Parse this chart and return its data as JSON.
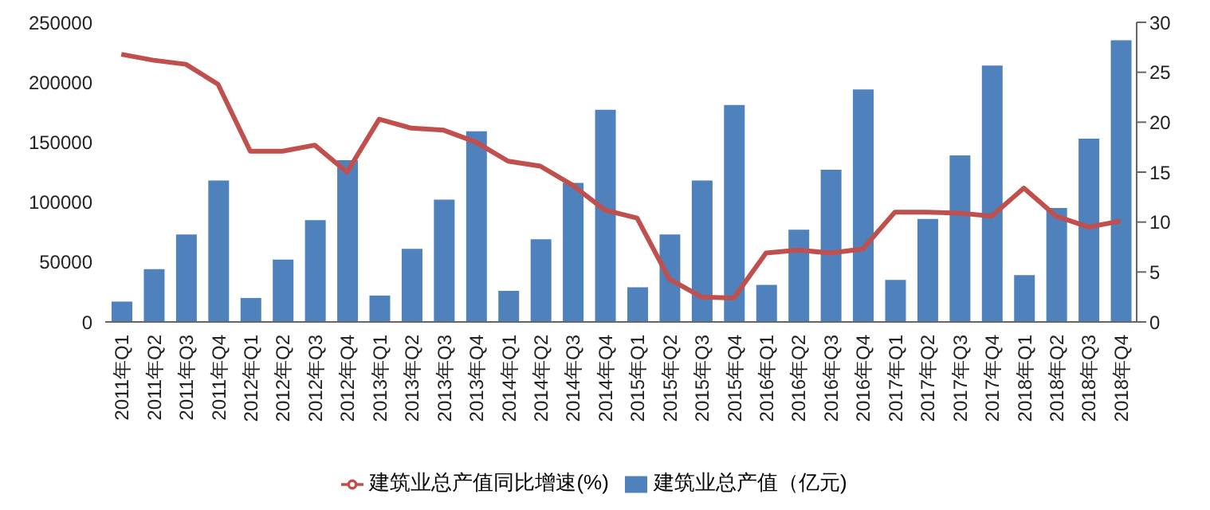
{
  "chart_data": {
    "type": "bar",
    "categories": [
      "2011年Q1",
      "2011年Q2",
      "2011年Q3",
      "2011年Q4",
      "2012年Q1",
      "2012年Q2",
      "2012年Q3",
      "2012年Q4",
      "2013年Q1",
      "2013年Q2",
      "2013年Q3",
      "2013年Q4",
      "2014年Q1",
      "2014年Q2",
      "2014年Q3",
      "2014年Q4",
      "2015年Q1",
      "2015年Q2",
      "2015年Q3",
      "2015年Q4",
      "2016年Q1",
      "2016年Q2",
      "2016年Q3",
      "2016年Q4",
      "2017年Q1",
      "2017年Q2",
      "2017年Q3",
      "2017年Q4",
      "2018年Q1",
      "2018年Q2",
      "2018年Q3",
      "2018年Q4"
    ],
    "series": [
      {
        "name": "建筑业总产值（亿元)",
        "color": "#4f81bd",
        "values": [
          17000,
          44000,
          73000,
          118000,
          20000,
          52000,
          85000,
          135000,
          22000,
          61000,
          102000,
          159000,
          26000,
          69000,
          116000,
          177000,
          29000,
          73000,
          118000,
          181000,
          31000,
          77000,
          127000,
          194000,
          35000,
          86000,
          139000,
          214000,
          39000,
          95000,
          153000,
          235000
        ]
      },
      {
        "name": "建筑业总产值同比增速(%)",
        "type": "line",
        "axis": "y2",
        "color": "#c0504d",
        "values": [
          26.8,
          26.2,
          25.8,
          23.8,
          17.1,
          17.1,
          17.7,
          15.0,
          20.3,
          19.4,
          19.2,
          18.0,
          16.1,
          15.6,
          13.7,
          11.2,
          10.4,
          4.3,
          2.5,
          2.4,
          6.9,
          7.2,
          6.9,
          7.3,
          11.0,
          11.0,
          10.9,
          10.6,
          13.4,
          10.6,
          9.5,
          10.1
        ]
      }
    ],
    "ylim": [
      0,
      250000
    ],
    "yticks": [
      0,
      50000,
      100000,
      150000,
      200000,
      250000
    ],
    "y2lim": [
      0,
      30
    ],
    "y2ticks": [
      0,
      5,
      10,
      15,
      20,
      25,
      30
    ],
    "legend": "bottom",
    "marker": "none",
    "line_style": "solid"
  }
}
